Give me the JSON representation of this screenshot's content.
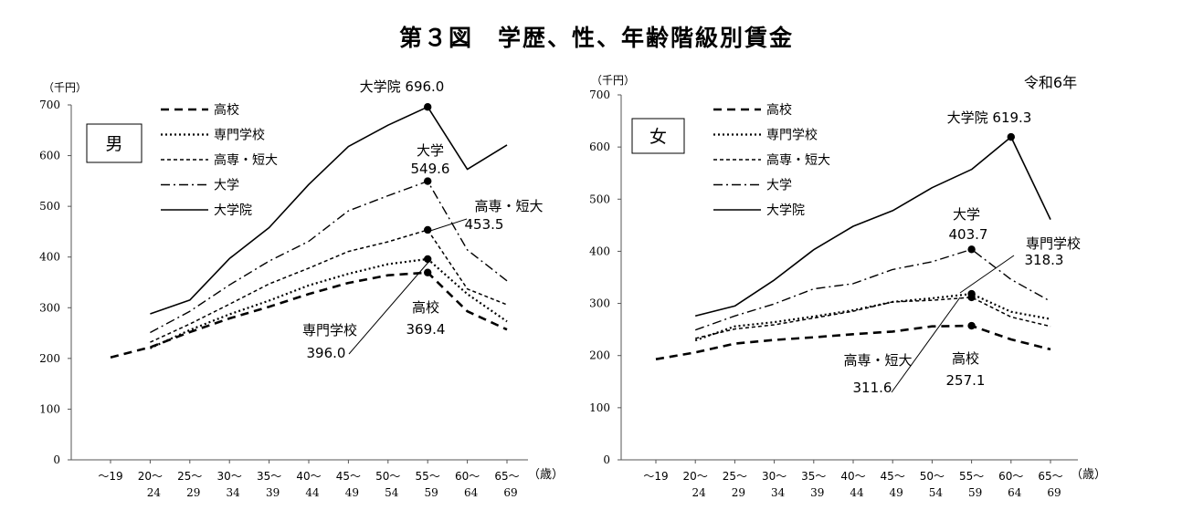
{
  "title": "第３図　学歴、性、年齢階級別賃金",
  "year_note": "令和6年",
  "unit_label": "（千円）",
  "age_unit": "（歳）",
  "legend": [
    "高校",
    "専門学校",
    "高専・短大",
    "大学",
    "大学院"
  ],
  "colors": {
    "line": "#000000",
    "axis": "#555555",
    "background": "#ffffff"
  },
  "chart_data": [
    {
      "type": "line",
      "panel_label": "男",
      "ylim": [
        0,
        700
      ],
      "yticks": [
        0,
        100,
        200,
        300,
        400,
        500,
        600,
        700
      ],
      "categories": [
        "～19",
        "20～24",
        "25～29",
        "30～34",
        "35～39",
        "40～44",
        "45～49",
        "50～54",
        "55～59",
        "60～64",
        "65～69"
      ],
      "tick_top": [
        "～19",
        "20～",
        "25～",
        "30～",
        "35～",
        "40～",
        "45～",
        "50～",
        "55～",
        "60～",
        "65～"
      ],
      "tick_bottom": [
        "",
        "24",
        "29",
        "34",
        "39",
        "44",
        "49",
        "54",
        "59",
        "64",
        "69"
      ],
      "series": [
        {
          "name": "高校",
          "style": "dash",
          "values": [
            202,
            222,
            252,
            279,
            302,
            327,
            349,
            364,
            369.4,
            293,
            257
          ]
        },
        {
          "name": "専門学校",
          "style": "dot",
          "values": [
            null,
            220,
            256,
            287,
            314,
            344,
            367,
            386,
            396.0,
            327,
            273
          ]
        },
        {
          "name": "高専・短大",
          "style": "shortdash",
          "values": [
            null,
            232,
            268,
            307,
            347,
            378,
            411,
            430,
            453.5,
            337,
            306
          ]
        },
        {
          "name": "大学",
          "style": "dashdot",
          "values": [
            null,
            251,
            293,
            345,
            392,
            431,
            491,
            521,
            549.6,
            414,
            353
          ]
        },
        {
          "name": "大学院",
          "style": "solid",
          "values": [
            null,
            288,
            315,
            397,
            458,
            543,
            618,
            660,
            696.0,
            573,
            621
          ]
        }
      ],
      "annotations": [
        {
          "series": "大学院",
          "label": "大学院 696.0"
        },
        {
          "series": "大学",
          "label": "大学",
          "value": "549.6"
        },
        {
          "series": "高専・短大",
          "label": "高専・短大",
          "value": "453.5"
        },
        {
          "series": "専門学校",
          "label": "専門学校",
          "value": "396.0"
        },
        {
          "series": "高校",
          "label": "高校",
          "value": "369.4"
        }
      ]
    },
    {
      "type": "line",
      "panel_label": "女",
      "ylim": [
        0,
        700
      ],
      "yticks": [
        0,
        100,
        200,
        300,
        400,
        500,
        600,
        700
      ],
      "categories": [
        "～19",
        "20～24",
        "25～29",
        "30～34",
        "35～39",
        "40～44",
        "45～49",
        "50～54",
        "55～59",
        "60～64",
        "65～69"
      ],
      "tick_top": [
        "～19",
        "20～",
        "25～",
        "30～",
        "35～",
        "40～",
        "45～",
        "50～",
        "55～",
        "60～",
        "65～"
      ],
      "tick_bottom": [
        "",
        "24",
        "29",
        "34",
        "39",
        "44",
        "49",
        "54",
        "59",
        "64",
        "69"
      ],
      "series": [
        {
          "name": "高校",
          "style": "dash",
          "values": [
            193,
            206,
            223,
            230,
            235,
            241,
            246,
            256,
            257.1,
            231,
            212
          ]
        },
        {
          "name": "専門学校",
          "style": "dot",
          "values": [
            null,
            229,
            256,
            264,
            275,
            287,
            303,
            310,
            318.3,
            284,
            270
          ]
        },
        {
          "name": "高専・短大",
          "style": "shortdash",
          "values": [
            null,
            233,
            251,
            259,
            272,
            285,
            303,
            306,
            311.6,
            274,
            256
          ]
        },
        {
          "name": "大学",
          "style": "dashdot",
          "values": [
            null,
            249,
            276,
            299,
            328,
            338,
            365,
            380,
            403.7,
            346,
            304
          ]
        },
        {
          "name": "大学院",
          "style": "solid",
          "values": [
            null,
            276,
            295,
            345,
            403,
            448,
            478,
            522,
            557,
            619.3,
            461
          ]
        }
      ],
      "annotations": [
        {
          "series": "大学院",
          "label": "大学院",
          "value": "619.3"
        },
        {
          "series": "大学",
          "label": "大学",
          "value": "403.7"
        },
        {
          "series": "専門学校",
          "label": "専門学校",
          "value": "318.3"
        },
        {
          "series": "高専・短大",
          "label": "高専・短大",
          "value": "311.6"
        },
        {
          "series": "高校",
          "label": "高校",
          "value": "257.1"
        }
      ]
    }
  ]
}
